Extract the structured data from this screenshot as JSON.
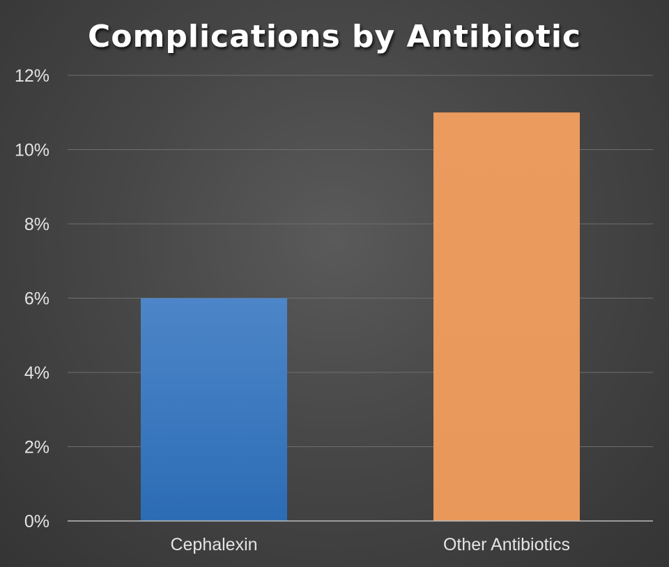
{
  "chart_data": {
    "type": "bar",
    "title": "Complications by Antibiotic",
    "xlabel": "",
    "ylabel": "",
    "categories": [
      "Cephalexin",
      "Other Antibiotics"
    ],
    "values": [
      6,
      11
    ],
    "unit": "%",
    "ylim": [
      0,
      12
    ],
    "y_ticks": [
      0,
      2,
      4,
      6,
      8,
      10,
      12
    ],
    "y_tick_labels": [
      "0%",
      "2%",
      "4%",
      "6%",
      "8%",
      "10%",
      "12%"
    ],
    "grid": true,
    "legend": "none",
    "bar_colors": [
      "#3474BE",
      "#E99A5C"
    ],
    "background": "dark-gradient"
  }
}
